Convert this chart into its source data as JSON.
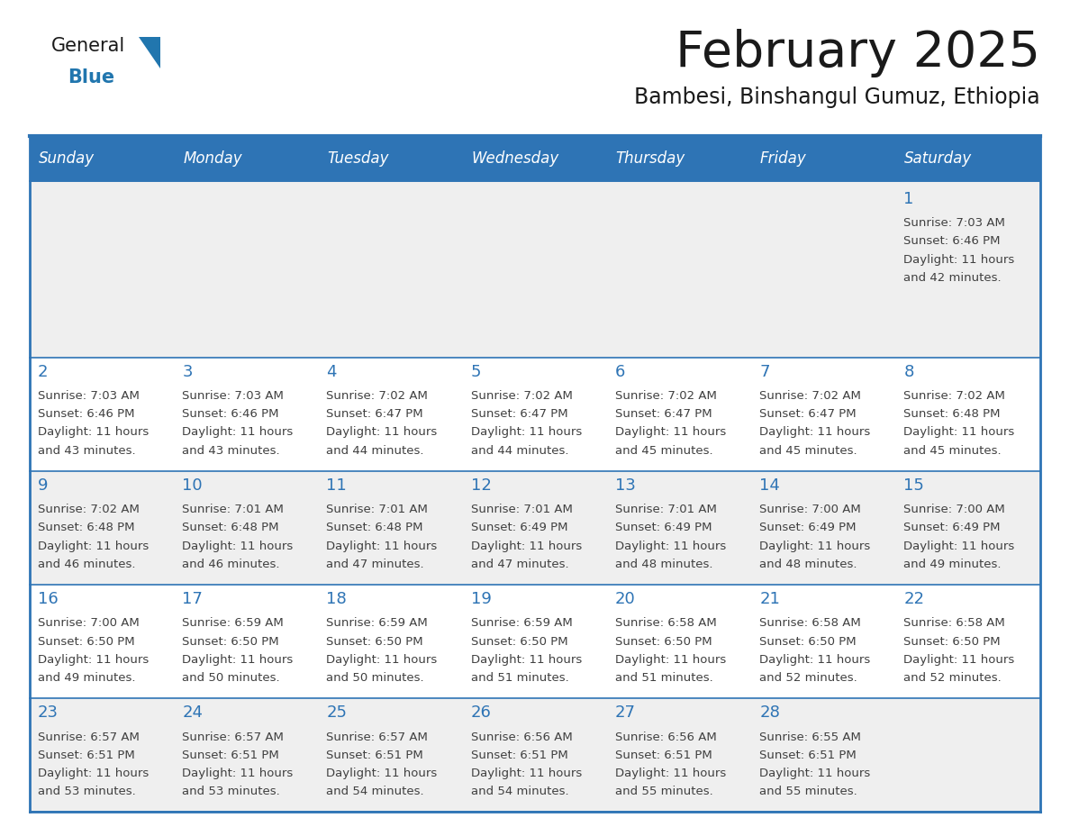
{
  "title": "February 2025",
  "subtitle": "Bambesi, Binshangul Gumuz, Ethiopia",
  "days_of_week": [
    "Sunday",
    "Monday",
    "Tuesday",
    "Wednesday",
    "Thursday",
    "Friday",
    "Saturday"
  ],
  "header_bg": "#2E74B5",
  "header_text": "#FFFFFF",
  "row1_bg": "#EFEFEF",
  "row_bg_even": "#EFEFEF",
  "row_bg_odd": "#FFFFFF",
  "cell_border_color": "#2E74B5",
  "day_num_color": "#2E74B5",
  "info_text_color": "#404040",
  "title_color": "#1A1A1A",
  "subtitle_color": "#1A1A1A",
  "logo_general_color": "#1A1A1A",
  "logo_blue_color": "#2176AE",
  "calendar_data": [
    [
      null,
      null,
      null,
      null,
      null,
      null,
      {
        "day": 1,
        "sunrise": "7:03 AM",
        "sunset": "6:46 PM",
        "daylight_h": "11 hours",
        "daylight_m": "and 42 minutes."
      }
    ],
    [
      {
        "day": 2,
        "sunrise": "7:03 AM",
        "sunset": "6:46 PM",
        "daylight_h": "11 hours",
        "daylight_m": "and 43 minutes."
      },
      {
        "day": 3,
        "sunrise": "7:03 AM",
        "sunset": "6:46 PM",
        "daylight_h": "11 hours",
        "daylight_m": "and 43 minutes."
      },
      {
        "day": 4,
        "sunrise": "7:02 AM",
        "sunset": "6:47 PM",
        "daylight_h": "11 hours",
        "daylight_m": "and 44 minutes."
      },
      {
        "day": 5,
        "sunrise": "7:02 AM",
        "sunset": "6:47 PM",
        "daylight_h": "11 hours",
        "daylight_m": "and 44 minutes."
      },
      {
        "day": 6,
        "sunrise": "7:02 AM",
        "sunset": "6:47 PM",
        "daylight_h": "11 hours",
        "daylight_m": "and 45 minutes."
      },
      {
        "day": 7,
        "sunrise": "7:02 AM",
        "sunset": "6:47 PM",
        "daylight_h": "11 hours",
        "daylight_m": "and 45 minutes."
      },
      {
        "day": 8,
        "sunrise": "7:02 AM",
        "sunset": "6:48 PM",
        "daylight_h": "11 hours",
        "daylight_m": "and 45 minutes."
      }
    ],
    [
      {
        "day": 9,
        "sunrise": "7:02 AM",
        "sunset": "6:48 PM",
        "daylight_h": "11 hours",
        "daylight_m": "and 46 minutes."
      },
      {
        "day": 10,
        "sunrise": "7:01 AM",
        "sunset": "6:48 PM",
        "daylight_h": "11 hours",
        "daylight_m": "and 46 minutes."
      },
      {
        "day": 11,
        "sunrise": "7:01 AM",
        "sunset": "6:48 PM",
        "daylight_h": "11 hours",
        "daylight_m": "and 47 minutes."
      },
      {
        "day": 12,
        "sunrise": "7:01 AM",
        "sunset": "6:49 PM",
        "daylight_h": "11 hours",
        "daylight_m": "and 47 minutes."
      },
      {
        "day": 13,
        "sunrise": "7:01 AM",
        "sunset": "6:49 PM",
        "daylight_h": "11 hours",
        "daylight_m": "and 48 minutes."
      },
      {
        "day": 14,
        "sunrise": "7:00 AM",
        "sunset": "6:49 PM",
        "daylight_h": "11 hours",
        "daylight_m": "and 48 minutes."
      },
      {
        "day": 15,
        "sunrise": "7:00 AM",
        "sunset": "6:49 PM",
        "daylight_h": "11 hours",
        "daylight_m": "and 49 minutes."
      }
    ],
    [
      {
        "day": 16,
        "sunrise": "7:00 AM",
        "sunset": "6:50 PM",
        "daylight_h": "11 hours",
        "daylight_m": "and 49 minutes."
      },
      {
        "day": 17,
        "sunrise": "6:59 AM",
        "sunset": "6:50 PM",
        "daylight_h": "11 hours",
        "daylight_m": "and 50 minutes."
      },
      {
        "day": 18,
        "sunrise": "6:59 AM",
        "sunset": "6:50 PM",
        "daylight_h": "11 hours",
        "daylight_m": "and 50 minutes."
      },
      {
        "day": 19,
        "sunrise": "6:59 AM",
        "sunset": "6:50 PM",
        "daylight_h": "11 hours",
        "daylight_m": "and 51 minutes."
      },
      {
        "day": 20,
        "sunrise": "6:58 AM",
        "sunset": "6:50 PM",
        "daylight_h": "11 hours",
        "daylight_m": "and 51 minutes."
      },
      {
        "day": 21,
        "sunrise": "6:58 AM",
        "sunset": "6:50 PM",
        "daylight_h": "11 hours",
        "daylight_m": "and 52 minutes."
      },
      {
        "day": 22,
        "sunrise": "6:58 AM",
        "sunset": "6:50 PM",
        "daylight_h": "11 hours",
        "daylight_m": "and 52 minutes."
      }
    ],
    [
      {
        "day": 23,
        "sunrise": "6:57 AM",
        "sunset": "6:51 PM",
        "daylight_h": "11 hours",
        "daylight_m": "and 53 minutes."
      },
      {
        "day": 24,
        "sunrise": "6:57 AM",
        "sunset": "6:51 PM",
        "daylight_h": "11 hours",
        "daylight_m": "and 53 minutes."
      },
      {
        "day": 25,
        "sunrise": "6:57 AM",
        "sunset": "6:51 PM",
        "daylight_h": "11 hours",
        "daylight_m": "and 54 minutes."
      },
      {
        "day": 26,
        "sunrise": "6:56 AM",
        "sunset": "6:51 PM",
        "daylight_h": "11 hours",
        "daylight_m": "and 54 minutes."
      },
      {
        "day": 27,
        "sunrise": "6:56 AM",
        "sunset": "6:51 PM",
        "daylight_h": "11 hours",
        "daylight_m": "and 55 minutes."
      },
      {
        "day": 28,
        "sunrise": "6:55 AM",
        "sunset": "6:51 PM",
        "daylight_h": "11 hours",
        "daylight_m": "and 55 minutes."
      },
      null
    ]
  ],
  "figsize": [
    11.88,
    9.18
  ],
  "dpi": 100
}
